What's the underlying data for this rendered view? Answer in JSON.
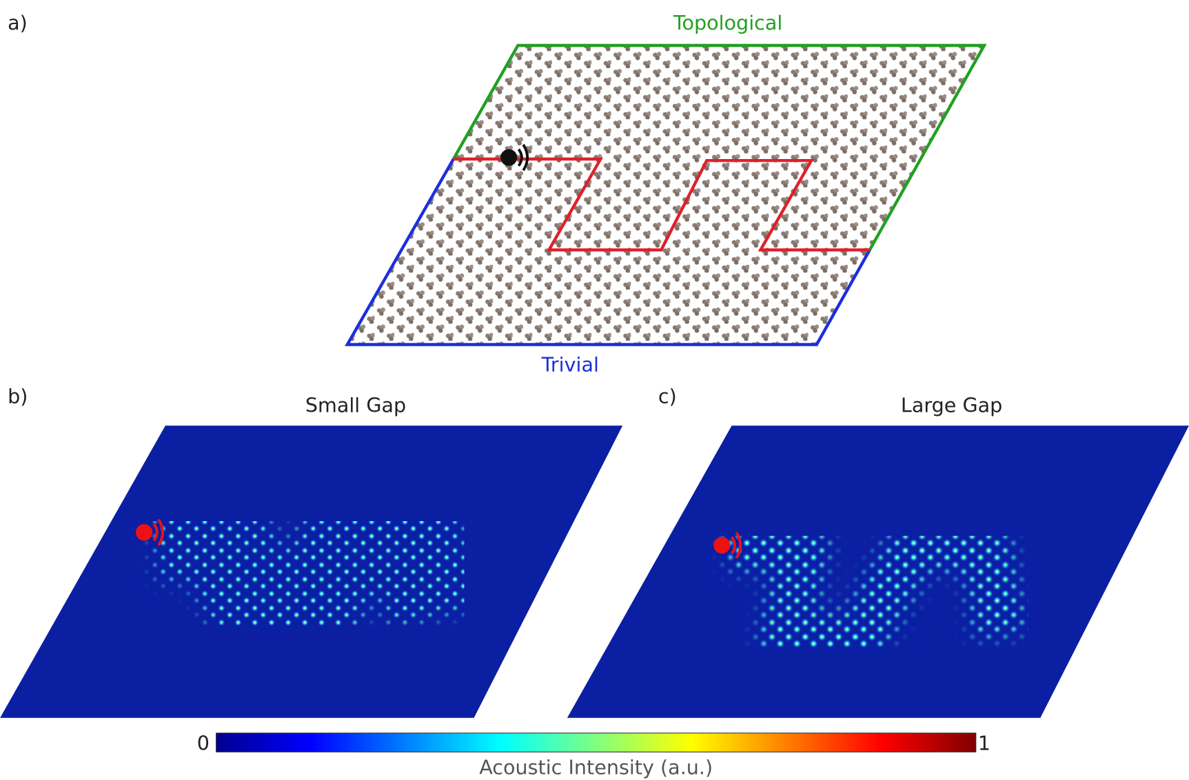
{
  "panel_a": {
    "label": "a)",
    "top_label": "Topological",
    "bottom_label": "Trivial"
  },
  "panel_b": {
    "label": "b)",
    "title": "Small Gap"
  },
  "panel_c": {
    "label": "c)",
    "title": "Large Gap"
  },
  "colorbar": {
    "min": 0,
    "max": 1,
    "title": "Acoustic Intensity (a.u.)"
  }
}
